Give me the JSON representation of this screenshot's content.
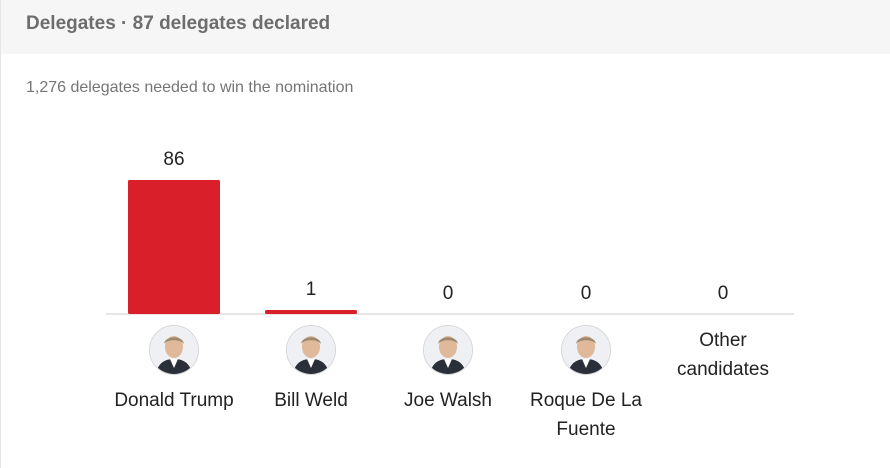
{
  "header": {
    "title": "Delegates · 87 delegates declared"
  },
  "subtitle": "1,276 delegates needed to win the nomination",
  "colors": {
    "bar": "#d81f2a",
    "axis": "#cccccc",
    "header_bg": "#f6f6f6"
  },
  "chart_data": {
    "type": "bar",
    "categories": [
      "Donald Trump",
      "Bill Weld",
      "Joe Walsh",
      "Roque De La Fuente",
      "Other candidates"
    ],
    "values": [
      86,
      1,
      0,
      0,
      0
    ],
    "data_labels": [
      "86",
      "1",
      "0",
      "0",
      "0"
    ],
    "title": "Delegates · 87 delegates declared",
    "subtitle": "1,276 delegates needed to win the nomination",
    "grid": false
  },
  "candidates": [
    {
      "name_line1": "Donald Trump",
      "name_line2": "",
      "avatar_icon": "candidate-photo-icon"
    },
    {
      "name_line1": "Bill Weld",
      "name_line2": "",
      "avatar_icon": "candidate-photo-icon"
    },
    {
      "name_line1": "Joe Walsh",
      "name_line2": "",
      "avatar_icon": "candidate-photo-icon"
    },
    {
      "name_line1": "Roque De La",
      "name_line2": "Fuente",
      "avatar_icon": "candidate-photo-icon"
    },
    {
      "name_line1": "Other",
      "name_line2": "candidates",
      "avatar_icon": ""
    }
  ]
}
